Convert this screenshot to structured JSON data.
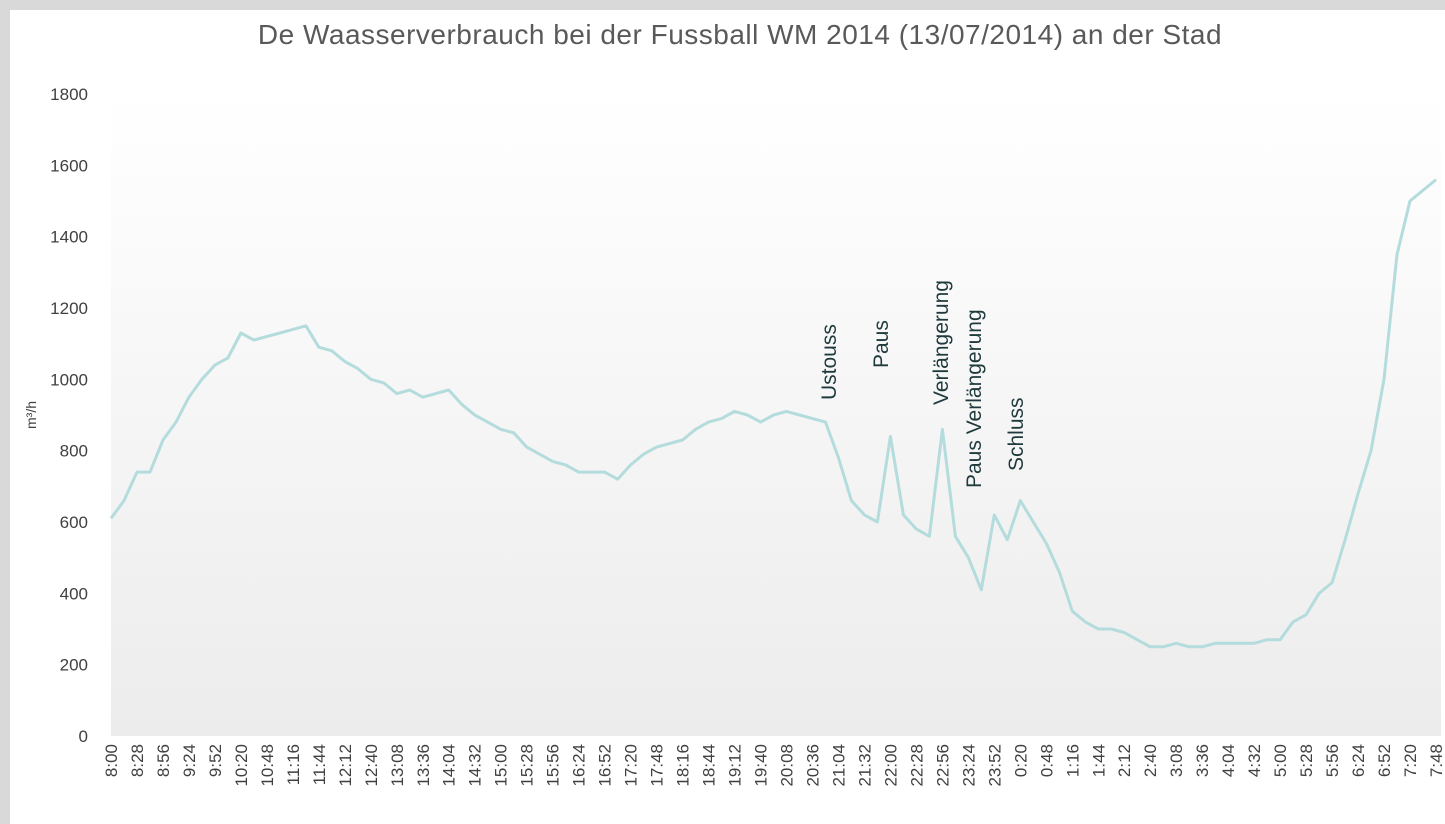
{
  "chart_data": {
    "type": "line",
    "title": "De Waasserverbrauch bei der Fussball WM 2014 (13/07/2014) an der Stad",
    "y_label": "m³/h",
    "annotations": [
      "Ustouss",
      "Paus",
      "Verlängerung",
      "Paus Verlängerung",
      "Schluss"
    ],
    "categories": [
      "8:00",
      null,
      "8:28",
      null,
      "8:56",
      null,
      "9:24",
      null,
      "9:52",
      null,
      "10:20",
      null,
      "10:48",
      null,
      "11:16",
      null,
      "11:44",
      null,
      "12:12",
      null,
      "12:40",
      null,
      "13:08",
      null,
      "13:36",
      null,
      "14:04",
      null,
      "14:32",
      null,
      "15:00",
      null,
      "15:28",
      null,
      "15:56",
      null,
      "16:24",
      null,
      "16:52",
      null,
      "17:20",
      null,
      "17:48",
      null,
      "18:16",
      null,
      "18:44",
      null,
      "19:12",
      null,
      "19:40",
      null,
      "20:08",
      null,
      "20:36",
      null,
      "21:04",
      null,
      "21:32",
      null,
      "22:00",
      null,
      "22:28",
      null,
      "22:56",
      null,
      "23:24",
      null,
      "23:52",
      null,
      "0:20",
      null,
      "0:48",
      null,
      "1:16",
      null,
      "1:44",
      null,
      "2:12",
      null,
      "2:40",
      null,
      "3:08",
      null,
      "3:36",
      null,
      "4:04",
      null,
      "4:32",
      null,
      "5:00",
      null,
      "5:28",
      null,
      "5:56",
      null,
      "6:24",
      null,
      "6:52",
      null,
      "7:20",
      null,
      "7:48"
    ],
    "values": [
      610,
      660,
      740,
      740,
      830,
      880,
      950,
      1000,
      1040,
      1060,
      1130,
      1110,
      1120,
      1130,
      1140,
      1150,
      1090,
      1080,
      1050,
      1030,
      1000,
      990,
      960,
      970,
      950,
      960,
      970,
      930,
      900,
      880,
      860,
      850,
      810,
      790,
      770,
      760,
      740,
      740,
      740,
      720,
      760,
      790,
      810,
      820,
      830,
      860,
      880,
      890,
      910,
      900,
      880,
      900,
      910,
      900,
      890,
      880,
      780,
      660,
      620,
      600,
      840,
      620,
      580,
      560,
      860,
      560,
      500,
      410,
      620,
      550,
      660,
      600,
      540,
      460,
      350,
      320,
      300,
      300,
      290,
      270,
      250,
      250,
      260,
      250,
      250,
      260,
      260,
      260,
      260,
      270,
      270,
      320,
      340,
      400,
      430,
      550,
      680,
      800,
      1000,
      1350,
      1500,
      1530,
      1560
    ],
    "color": "#b4dcdc",
    "ylim": [
      0,
      1800
    ],
    "yticks": [
      0,
      200,
      400,
      600,
      800,
      1000,
      1200,
      1400,
      1600,
      1800
    ],
    "grid": false
  }
}
